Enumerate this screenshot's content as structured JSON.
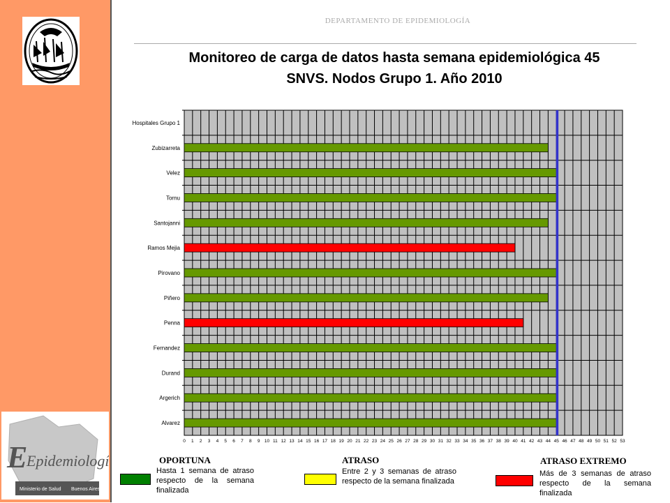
{
  "header": {
    "department": "DEPARTAMENTO  DE EPIDEMIOLOGÍA",
    "title_line1": "Monitoreo de carga de datos hasta semana epidemiológica 45",
    "title_line2": "SNVS. Nodos Grupo 1. Año 2010"
  },
  "sidebar": {
    "logo_top": "city-seal",
    "logo_bottom": "Epidemiología",
    "ministry_text": "Ministerio de Salud",
    "city_text": "Buenos Aires"
  },
  "colors": {
    "sidebar_bg": "#ff9966",
    "plot_bg": "#c0c0c0",
    "oportuna": "#669900",
    "atraso": "#ffff00",
    "atraso_extremo": "#ff0000",
    "reference_line": "#3333cc"
  },
  "chart_data": {
    "type": "bar",
    "orientation": "horizontal",
    "categories": [
      "Hospitales Grupo 1",
      "Zubizarreta",
      "Velez",
      "Tornu",
      "Santojanni",
      "Ramos Mejia",
      "Pirovano",
      "Piñero",
      "Penna",
      "Fernandez",
      "Durand",
      "Argerich",
      "Alvarez"
    ],
    "values": [
      0,
      44,
      45,
      45,
      44,
      40,
      45,
      44,
      41,
      45,
      45,
      45,
      45
    ],
    "status": [
      "",
      "oportuna",
      "oportuna",
      "oportuna",
      "oportuna",
      "atraso_extremo",
      "oportuna",
      "oportuna",
      "atraso_extremo",
      "oportuna",
      "oportuna",
      "oportuna",
      "oportuna"
    ],
    "xlim": [
      0,
      53
    ],
    "x_ticks": [
      0,
      1,
      2,
      3,
      4,
      5,
      6,
      7,
      8,
      9,
      10,
      11,
      12,
      13,
      14,
      15,
      16,
      17,
      18,
      19,
      20,
      21,
      22,
      23,
      24,
      25,
      26,
      27,
      28,
      29,
      30,
      31,
      32,
      33,
      34,
      35,
      36,
      37,
      38,
      39,
      40,
      41,
      42,
      43,
      44,
      45,
      46,
      47,
      48,
      49,
      50,
      51,
      52,
      53
    ],
    "reference_week": 45,
    "grid": true
  },
  "legend": [
    {
      "key": "oportuna",
      "title": "OPORTUNA",
      "desc": "Hasta 1 semana de atraso respecto de la semana finalizada",
      "color": "#008000"
    },
    {
      "key": "atraso",
      "title": "ATRASO",
      "desc": "Entre 2 y 3 semanas de atraso respecto de la semana finalizada",
      "color": "#ffff00"
    },
    {
      "key": "atraso_extremo",
      "title": "ATRASO EXTREMO",
      "desc": "Más de 3 semanas de atraso respecto de la semana finalizada",
      "color": "#ff0000"
    }
  ]
}
